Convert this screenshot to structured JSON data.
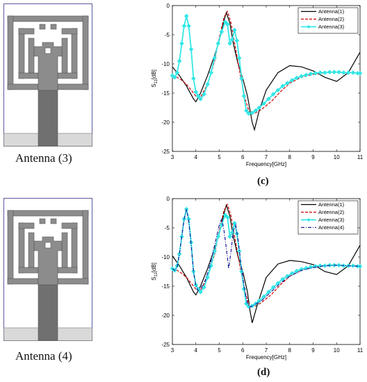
{
  "antennas": [
    {
      "caption": "Antenna (3)"
    },
    {
      "caption": "Antenna (4)"
    }
  ],
  "sublabels": [
    "(c)",
    "(d)"
  ],
  "colors": {
    "substrate_border": "#5a5a9a",
    "metal": "#8c8c8c",
    "feed_dark": "#707070",
    "ground": "#d9d9d9",
    "a1": "#000000",
    "a2": "#cc0000",
    "a3": "#33e6e6",
    "a4": "#1a1a99"
  },
  "chart_data": [
    {
      "type": "line",
      "xlabel": "Frequency[GHz]",
      "ylabel_main": "S",
      "ylabel_sub": "11",
      "ylabel_unit": "[dB]",
      "xlim": [
        3,
        11
      ],
      "ylim": [
        -25,
        0
      ],
      "xticks": [
        3,
        4,
        5,
        6,
        7,
        8,
        9,
        10,
        11
      ],
      "yticks": [
        0,
        -5,
        -10,
        -15,
        -20,
        -25
      ],
      "grid": false,
      "legend_position": "top-right",
      "series": [
        {
          "name": "Antenna(1)",
          "color": "#000000",
          "dash": "solid",
          "marker": "none",
          "x": [
            3,
            3.3,
            3.6,
            3.9,
            4.0,
            4.2,
            4.5,
            4.8,
            5.0,
            5.2,
            5.3,
            5.45,
            5.6,
            5.8,
            6.0,
            6.2,
            6.4,
            6.5,
            6.7,
            7.0,
            7.5,
            8.0,
            8.5,
            9.0,
            9.5,
            10.0,
            10.5,
            11
          ],
          "y": [
            -10.5,
            -12,
            -13.8,
            -16,
            -16.5,
            -15,
            -12,
            -8.5,
            -6,
            -2.5,
            -1.2,
            -3,
            -6.5,
            -10,
            -12.5,
            -15.5,
            -20,
            -21.3,
            -18,
            -14.5,
            -11.5,
            -10.3,
            -10.5,
            -11.2,
            -12.3,
            -13,
            -11.5,
            -8
          ]
        },
        {
          "name": "Antenna(2)",
          "color": "#cc0000",
          "dash": "dashed",
          "marker": "none",
          "x": [
            3,
            3.2,
            3.4,
            3.6,
            3.8,
            4.0,
            4.2,
            4.5,
            4.8,
            5.0,
            5.2,
            5.35,
            5.5,
            5.7,
            5.9,
            6.1,
            6.3,
            6.5,
            6.8,
            7.2,
            7.6,
            8.0,
            8.5,
            9.0,
            9.5,
            10.0,
            10.5,
            11
          ],
          "y": [
            -12,
            -12.3,
            -12.8,
            -13.5,
            -14.5,
            -15.5,
            -15.7,
            -13.5,
            -9.5,
            -5.5,
            -2,
            -1,
            -3,
            -7.5,
            -12,
            -16,
            -18.6,
            -18.5,
            -17.8,
            -16.5,
            -14.8,
            -13.3,
            -12.3,
            -11.8,
            -11.5,
            -11.4,
            -11.5,
            -11.6
          ]
        },
        {
          "name": "Antenna(3)",
          "color": "#33e6e6",
          "dash": "solid",
          "marker": "diamond",
          "x": [
            3,
            3.1,
            3.2,
            3.3,
            3.4,
            3.5,
            3.6,
            3.7,
            3.8,
            3.9,
            4.0,
            4.1,
            4.2,
            4.35,
            4.5,
            4.65,
            4.8,
            4.95,
            5.1,
            5.25,
            5.35,
            5.45,
            5.55,
            5.65,
            5.75,
            5.85,
            5.95,
            6.05,
            6.15,
            6.25,
            6.4,
            6.55,
            6.7,
            6.9,
            7.1,
            7.3,
            7.5,
            7.7,
            7.9,
            8.1,
            8.3,
            8.5,
            8.7,
            8.9,
            9.1,
            9.3,
            9.5,
            9.7,
            9.9,
            10.1,
            10.3,
            10.5,
            10.7,
            10.9,
            11
          ],
          "y": [
            -12,
            -12.3,
            -11.5,
            -9.5,
            -6.5,
            -3.5,
            -1.8,
            -3.5,
            -7.5,
            -12.5,
            -14.8,
            -15.5,
            -16,
            -15.2,
            -13.5,
            -11.5,
            -9,
            -6.5,
            -4.5,
            -2.8,
            -3.2,
            -6.5,
            -5.8,
            -4.2,
            -6,
            -9,
            -12.5,
            -15.5,
            -18,
            -18.5,
            -18.4,
            -18,
            -17.5,
            -16.8,
            -16,
            -15.2,
            -14.5,
            -13.8,
            -13.3,
            -12.8,
            -12.4,
            -12.1,
            -11.9,
            -11.7,
            -11.6,
            -11.5,
            -11.5,
            -11.4,
            -11.4,
            -11.4,
            -11.5,
            -11.5,
            -11.5,
            -11.6,
            -11.6
          ]
        }
      ]
    },
    {
      "type": "line",
      "xlabel": "Frequency[GHz]",
      "ylabel_main": "S",
      "ylabel_sub": "11",
      "ylabel_unit": "[dB]",
      "xlim": [
        3,
        11
      ],
      "ylim": [
        -25,
        0
      ],
      "xticks": [
        3,
        4,
        5,
        6,
        7,
        8,
        9,
        10,
        11
      ],
      "yticks": [
        0,
        -5,
        -10,
        -15,
        -20,
        -25
      ],
      "grid": false,
      "legend_position": "top-right",
      "series": [
        {
          "name": "Antenna(1)",
          "color": "#000000",
          "dash": "solid",
          "marker": "none",
          "x": [
            3,
            3.3,
            3.6,
            3.9,
            4.0,
            4.2,
            4.5,
            4.8,
            5.0,
            5.2,
            5.3,
            5.45,
            5.6,
            5.8,
            6.0,
            6.2,
            6.3,
            6.4,
            6.6,
            7.0,
            7.5,
            8.0,
            8.5,
            9.0,
            9.5,
            10.0,
            10.5,
            11
          ],
          "y": [
            -9.8,
            -11.5,
            -13.5,
            -16,
            -16.5,
            -15,
            -12,
            -8.5,
            -6,
            -2.5,
            -1.1,
            -3,
            -6.5,
            -10,
            -12.5,
            -16,
            -19,
            -21.3,
            -18.5,
            -13.5,
            -11.2,
            -10.6,
            -10.8,
            -11.3,
            -12.5,
            -13,
            -11.5,
            -8
          ]
        },
        {
          "name": "Antenna(2)",
          "color": "#cc0000",
          "dash": "dashed",
          "marker": "none",
          "x": [
            3,
            3.2,
            3.4,
            3.6,
            3.8,
            4.0,
            4.2,
            4.5,
            4.8,
            5.0,
            5.2,
            5.35,
            5.5,
            5.7,
            5.9,
            6.1,
            6.3,
            6.5,
            6.8,
            7.2,
            7.6,
            8.0,
            8.5,
            9.0,
            9.5,
            10.0,
            10.5,
            11
          ],
          "y": [
            -12,
            -12.3,
            -12.8,
            -13.5,
            -14.5,
            -15.5,
            -15.7,
            -13.5,
            -9.5,
            -5.5,
            -2,
            -1,
            -3,
            -7.5,
            -12,
            -16,
            -18.6,
            -18.5,
            -17.8,
            -16.5,
            -14.8,
            -13.3,
            -12.3,
            -11.8,
            -11.5,
            -11.4,
            -11.5,
            -11.6
          ]
        },
        {
          "name": "Antenna(3)",
          "color": "#33e6e6",
          "dash": "solid",
          "marker": "diamond",
          "x": [
            3,
            3.1,
            3.2,
            3.3,
            3.4,
            3.5,
            3.6,
            3.7,
            3.8,
            3.9,
            4.0,
            4.1,
            4.2,
            4.35,
            4.5,
            4.65,
            4.8,
            4.95,
            5.1,
            5.25,
            5.35,
            5.45,
            5.55,
            5.65,
            5.75,
            5.85,
            5.95,
            6.05,
            6.15,
            6.25,
            6.4,
            6.55,
            6.7,
            6.9,
            7.1,
            7.3,
            7.5,
            7.7,
            7.9,
            8.1,
            8.3,
            8.5,
            8.7,
            8.9,
            9.1,
            9.3,
            9.5,
            9.7,
            9.9,
            10.1,
            10.3,
            10.5,
            10.7,
            10.9,
            11
          ],
          "y": [
            -12,
            -12.3,
            -11.5,
            -9.5,
            -6.5,
            -3.5,
            -1.8,
            -3.5,
            -7.5,
            -12.5,
            -14.8,
            -15.5,
            -16,
            -15.2,
            -13.5,
            -11.5,
            -9,
            -6.5,
            -4.5,
            -2.8,
            -3.2,
            -6.5,
            -5.8,
            -4.2,
            -6,
            -9,
            -12.5,
            -15.5,
            -18,
            -18.5,
            -18.4,
            -18,
            -17.5,
            -16.8,
            -16,
            -15.2,
            -14.5,
            -13.8,
            -13.3,
            -12.8,
            -12.4,
            -12.1,
            -11.9,
            -11.7,
            -11.6,
            -11.5,
            -11.5,
            -11.4,
            -11.4,
            -11.4,
            -11.5,
            -11.5,
            -11.5,
            -11.6,
            -11.6
          ]
        },
        {
          "name": "Antenna(4)",
          "color": "#1a1a99",
          "dash": "dashdot",
          "marker": "none",
          "x": [
            3,
            3.1,
            3.2,
            3.3,
            3.4,
            3.5,
            3.6,
            3.7,
            3.8,
            3.9,
            4.0,
            4.1,
            4.2,
            4.4,
            4.6,
            4.8,
            5.0,
            5.1,
            5.2,
            5.3,
            5.4,
            5.5,
            5.6,
            5.7,
            5.8,
            5.9,
            6.0,
            6.1,
            6.2,
            6.3,
            6.5,
            6.8,
            7.2,
            7.6,
            8.0,
            8.5,
            9.0,
            9.5,
            10.0,
            10.5,
            11
          ],
          "y": [
            -12,
            -12.3,
            -11.8,
            -9.5,
            -6.5,
            -3.5,
            -1.8,
            -4,
            -8,
            -12.5,
            -15,
            -15.8,
            -15.5,
            -14,
            -11.5,
            -8,
            -4.5,
            -3.5,
            -5.5,
            -8.5,
            -12,
            -9,
            -5.5,
            -4.5,
            -7,
            -10.5,
            -13.5,
            -16,
            -18,
            -18.6,
            -18.2,
            -17.5,
            -16,
            -14.5,
            -13.3,
            -12.3,
            -11.8,
            -11.5,
            -11.4,
            -11.5,
            -11.6
          ]
        }
      ]
    }
  ]
}
